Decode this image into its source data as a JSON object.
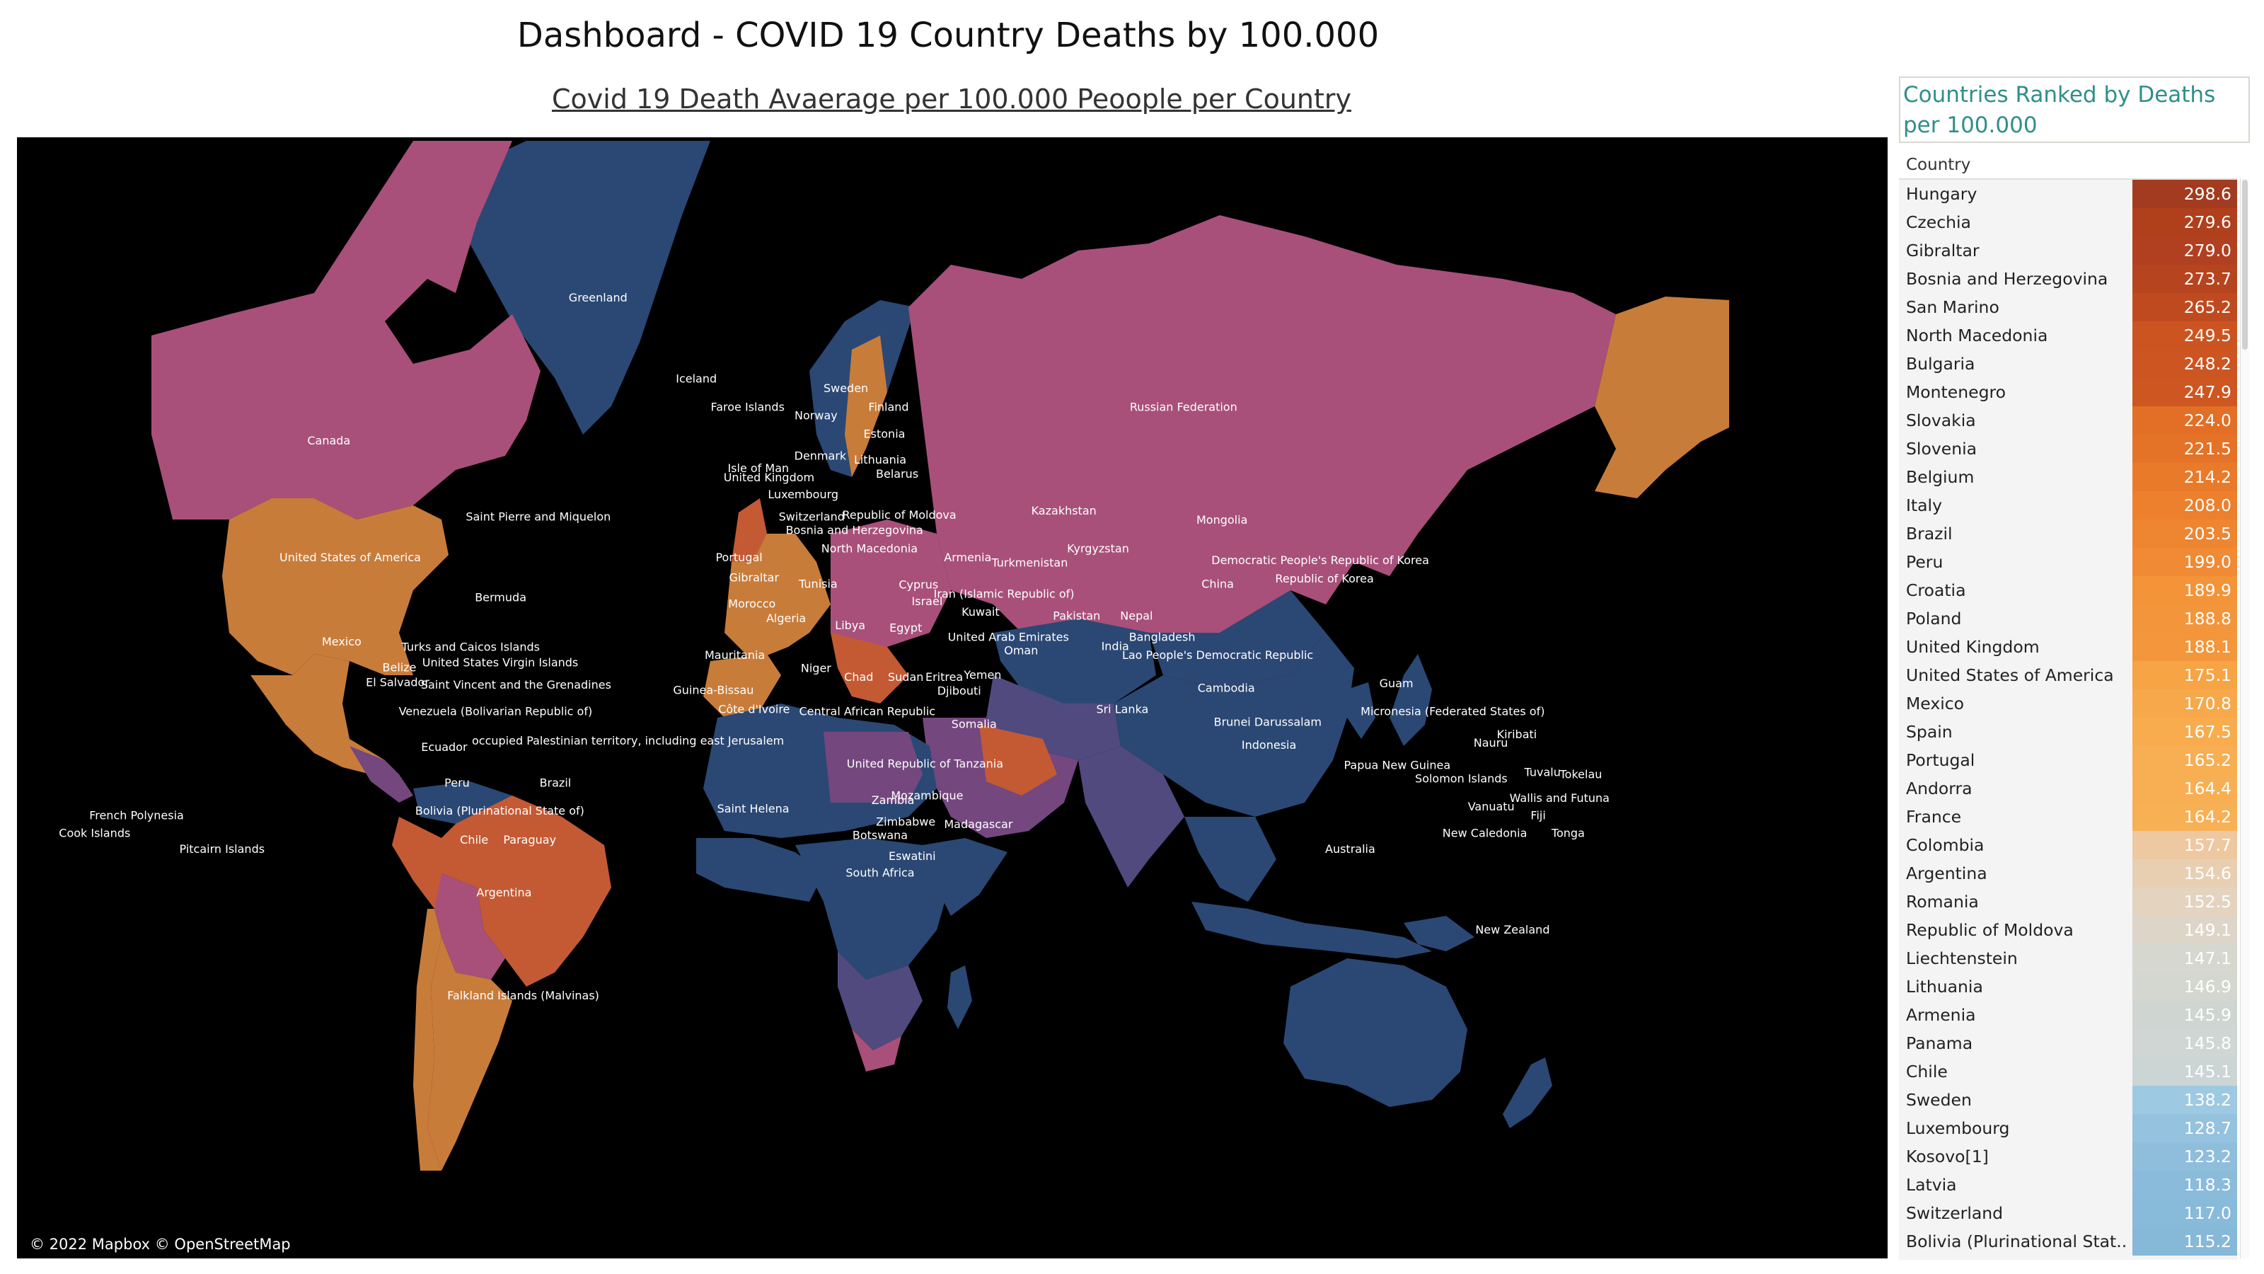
{
  "dashboard_title": "Dashboard - COVID 19 Country Deaths by 100.000",
  "map": {
    "title": "Covid 19 Death Avaerage per 100.000 Peoople per Country",
    "attribution": "© 2022 Mapbox © OpenStreetMap",
    "labels": [
      {
        "text": "Greenland",
        "lon": -42,
        "lat": 72
      },
      {
        "text": "Canada",
        "lon": -105,
        "lat": 58
      },
      {
        "text": "Iceland",
        "lon": -19,
        "lat": 65
      },
      {
        "text": "Faroe Islands",
        "lon": -7,
        "lat": 62
      },
      {
        "text": "Sweden",
        "lon": 16,
        "lat": 64
      },
      {
        "text": "Norway",
        "lon": 9,
        "lat": 61
      },
      {
        "text": "Finland",
        "lon": 26,
        "lat": 62
      },
      {
        "text": "Estonia",
        "lon": 25,
        "lat": 58.8
      },
      {
        "text": "Denmark",
        "lon": 10,
        "lat": 56
      },
      {
        "text": "Lithuania",
        "lon": 24,
        "lat": 55.5
      },
      {
        "text": "Isle of Man",
        "lon": -4.5,
        "lat": 54.3
      },
      {
        "text": "Belarus",
        "lon": 28,
        "lat": 53.5
      },
      {
        "text": "United Kingdom",
        "lon": -2,
        "lat": 53
      },
      {
        "text": "Luxembourg",
        "lon": 6,
        "lat": 50.5
      },
      {
        "text": "Republic of Moldova",
        "lon": 28.5,
        "lat": 47.3
      },
      {
        "text": "Switzerland",
        "lon": 8,
        "lat": 47
      },
      {
        "text": "Bosnia and Herzegovina",
        "lon": 18,
        "lat": 44.8
      },
      {
        "text": "North Macedonia",
        "lon": 21.5,
        "lat": 41.6
      },
      {
        "text": "Russian Federation",
        "lon": 95,
        "lat": 62
      },
      {
        "text": "Kazakhstan",
        "lon": 67,
        "lat": 48
      },
      {
        "text": "Mongolia",
        "lon": 104,
        "lat": 46.5
      },
      {
        "text": "Kyrgyzstan",
        "lon": 75,
        "lat": 41.6
      },
      {
        "text": "Portugal",
        "lon": -9,
        "lat": 40
      },
      {
        "text": "Armenia",
        "lon": 44.5,
        "lat": 40
      },
      {
        "text": "Turkmenistan",
        "lon": 59,
        "lat": 39
      },
      {
        "text": "Democratic People's Republic of Korea",
        "lon": 127,
        "lat": 39.5
      },
      {
        "text": "Gibraltar",
        "lon": -5.5,
        "lat": 36.2
      },
      {
        "text": "Tunisia",
        "lon": 9.5,
        "lat": 35
      },
      {
        "text": "Cyprus",
        "lon": 33,
        "lat": 34.8
      },
      {
        "text": "Republic of Korea",
        "lon": 128,
        "lat": 36
      },
      {
        "text": "Iran (Islamic Republic of)",
        "lon": 53,
        "lat": 33
      },
      {
        "text": "Morocco",
        "lon": -6,
        "lat": 31
      },
      {
        "text": "Israel",
        "lon": 35,
        "lat": 31.5
      },
      {
        "text": "Kuwait",
        "lon": 47.5,
        "lat": 29.3
      },
      {
        "text": "Algeria",
        "lon": 2,
        "lat": 28
      },
      {
        "text": "Libya",
        "lon": 17,
        "lat": 26.5
      },
      {
        "text": "Egypt",
        "lon": 30,
        "lat": 26
      },
      {
        "text": "Pakistan",
        "lon": 70,
        "lat": 28.5
      },
      {
        "text": "Nepal",
        "lon": 84,
        "lat": 28.5
      },
      {
        "text": "Bermuda",
        "lon": -64.8,
        "lat": 32.3
      },
      {
        "text": "United States of America",
        "lon": -100,
        "lat": 40
      },
      {
        "text": "Saint Pierre and Miquelon",
        "lon": -56,
        "lat": 47
      },
      {
        "text": "China",
        "lon": 103,
        "lat": 35
      },
      {
        "text": "Bangladesh",
        "lon": 90,
        "lat": 24
      },
      {
        "text": "United Arab Emirates",
        "lon": 54,
        "lat": 24
      },
      {
        "text": "India",
        "lon": 79,
        "lat": 22
      },
      {
        "text": "Oman",
        "lon": 57,
        "lat": 21
      },
      {
        "text": "Lao People's Democratic Republic",
        "lon": 103,
        "lat": 20
      },
      {
        "text": "Mexico",
        "lon": -102,
        "lat": 23
      },
      {
        "text": "Turks and Caicos Islands",
        "lon": -71.8,
        "lat": 21.8
      },
      {
        "text": "United States Virgin Islands",
        "lon": -64.9,
        "lat": 18.3
      },
      {
        "text": "Belize",
        "lon": -88.5,
        "lat": 17.2
      },
      {
        "text": "Mauritania",
        "lon": -10,
        "lat": 20
      },
      {
        "text": "Niger",
        "lon": 9,
        "lat": 17
      },
      {
        "text": "Chad",
        "lon": 19,
        "lat": 15
      },
      {
        "text": "Sudan",
        "lon": 30,
        "lat": 15
      },
      {
        "text": "Eritrea",
        "lon": 39,
        "lat": 15
      },
      {
        "text": "Yemen",
        "lon": 48,
        "lat": 15.5
      },
      {
        "text": "El Salvador",
        "lon": -88.9,
        "lat": 13.8
      },
      {
        "text": "Saint Vincent and the Grenadines",
        "lon": -61.2,
        "lat": 13.2
      },
      {
        "text": "Guinea-Bissau",
        "lon": -15,
        "lat": 12
      },
      {
        "text": "Djibouti",
        "lon": 42.5,
        "lat": 11.8
      },
      {
        "text": "Cambodia",
        "lon": 105,
        "lat": 12.5
      },
      {
        "text": "Guam",
        "lon": 144.8,
        "lat": 13.5
      },
      {
        "text": "Côte d'Ivoire",
        "lon": -5.5,
        "lat": 7.5
      },
      {
        "text": "Central African Republic",
        "lon": 21,
        "lat": 7
      },
      {
        "text": "Venezuela (Bolivarian Republic of)",
        "lon": -66,
        "lat": 7
      },
      {
        "text": "Sri Lanka",
        "lon": 80.7,
        "lat": 7.5
      },
      {
        "text": "Micronesia (Federated States of)",
        "lon": 158,
        "lat": 7
      },
      {
        "text": "Brunei Darussalam",
        "lon": 114.7,
        "lat": 4.5
      },
      {
        "text": "Somalia",
        "lon": 46,
        "lat": 4
      },
      {
        "text": "Kiribati",
        "lon": 173,
        "lat": 1.5
      },
      {
        "text": "occupied Palestinian territory, including east Jerusalem",
        "lon": -35,
        "lat": 0
      },
      {
        "text": "Ecuador",
        "lon": -78,
        "lat": -1.5
      },
      {
        "text": "Indonesia",
        "lon": 115,
        "lat": -1
      },
      {
        "text": "Nauru",
        "lon": 166.9,
        "lat": -0.5
      },
      {
        "text": "United Republic of Tanzania",
        "lon": 34.5,
        "lat": -5.5
      },
      {
        "text": "Papua New Guinea",
        "lon": 145,
        "lat": -5.8
      },
      {
        "text": "Tuvalu",
        "lon": 179,
        "lat": -7.5
      },
      {
        "text": "Tokelau",
        "lon": -172,
        "lat": -8
      },
      {
        "text": "Brazil",
        "lon": -52,
        "lat": -10
      },
      {
        "text": "Solomon Islands",
        "lon": 160,
        "lat": -9
      },
      {
        "text": "Peru",
        "lon": -75,
        "lat": -10
      },
      {
        "text": "Mozambique",
        "lon": 35,
        "lat": -13
      },
      {
        "text": "Wallis and Futuna",
        "lon": -177,
        "lat": -13.5
      },
      {
        "text": "Zambia",
        "lon": 27,
        "lat": -14
      },
      {
        "text": "Vanuatu",
        "lon": 167,
        "lat": -15.5
      },
      {
        "text": "Bolivia (Plurinational State of)",
        "lon": -65,
        "lat": -16.5
      },
      {
        "text": "Fiji",
        "lon": 178,
        "lat": -17.5
      },
      {
        "text": "Zimbabwe",
        "lon": 30,
        "lat": -19
      },
      {
        "text": "French Polynesia",
        "lon": -150,
        "lat": -17.5
      },
      {
        "text": "Madagascar",
        "lon": 47,
        "lat": -19.5
      },
      {
        "text": "New Caledonia",
        "lon": 165.5,
        "lat": -21.5
      },
      {
        "text": "Tonga",
        "lon": -175,
        "lat": -21.5
      },
      {
        "text": "Cook Islands",
        "lon": -159.8,
        "lat": -21.5
      },
      {
        "text": "Botswana",
        "lon": 24,
        "lat": -22
      },
      {
        "text": "Chile",
        "lon": -71,
        "lat": -23
      },
      {
        "text": "Paraguay",
        "lon": -58,
        "lat": -23
      },
      {
        "text": "Pitcairn Islands",
        "lon": -130,
        "lat": -25
      },
      {
        "text": "Australia",
        "lon": 134,
        "lat": -25
      },
      {
        "text": "Eswatini",
        "lon": 31.5,
        "lat": -26.5
      },
      {
        "text": "South Africa",
        "lon": 24,
        "lat": -30
      },
      {
        "text": "Argentina",
        "lon": -64,
        "lat": -34
      },
      {
        "text": "New Zealand",
        "lon": 172,
        "lat": -41
      },
      {
        "text": "Saint Helena",
        "lon": -5.7,
        "lat": -16
      },
      {
        "text": "Falkland Islands (Malvinas)",
        "lon": -59.5,
        "lat": -51.8
      }
    ]
  },
  "ranking": {
    "title": "Countries Ranked by Deaths per 100.000",
    "column_header": "Country",
    "rows": [
      {
        "country": "Hungary",
        "value": "298.6",
        "color": "#a23b1f"
      },
      {
        "country": "Czechia",
        "value": "279.6",
        "color": "#b03f1c"
      },
      {
        "country": "Gibraltar",
        "value": "279.0",
        "color": "#b14020"
      },
      {
        "country": "Bosnia and Herzegovina",
        "value": "273.7",
        "color": "#b6441f"
      },
      {
        "country": "San Marino",
        "value": "265.2",
        "color": "#bf4a1f"
      },
      {
        "country": "North Macedonia",
        "value": "249.5",
        "color": "#cc5420"
      },
      {
        "country": "Bulgaria",
        "value": "248.2",
        "color": "#cd5521"
      },
      {
        "country": "Montenegro",
        "value": "247.9",
        "color": "#cd5621"
      },
      {
        "country": "Slovakia",
        "value": "224.0",
        "color": "#e26f25"
      },
      {
        "country": "Slovenia",
        "value": "221.5",
        "color": "#e47227"
      },
      {
        "country": "Belgium",
        "value": "214.2",
        "color": "#e97a29"
      },
      {
        "country": "Italy",
        "value": "208.0",
        "color": "#ec802d"
      },
      {
        "country": "Brazil",
        "value": "203.5",
        "color": "#ee8531"
      },
      {
        "country": "Peru",
        "value": "199.0",
        "color": "#f08a34"
      },
      {
        "country": "Croatia",
        "value": "189.9",
        "color": "#f39439"
      },
      {
        "country": "Poland",
        "value": "188.8",
        "color": "#f3953a"
      },
      {
        "country": "United Kingdom",
        "value": "188.1",
        "color": "#f4963b"
      },
      {
        "country": "United States of America",
        "value": "175.1",
        "color": "#f6a444"
      },
      {
        "country": "Mexico",
        "value": "170.8",
        "color": "#f7a84a"
      },
      {
        "country": "Spain",
        "value": "167.5",
        "color": "#f8ac4e"
      },
      {
        "country": "Portugal",
        "value": "165.2",
        "color": "#f8ae52"
      },
      {
        "country": "Andorra",
        "value": "164.4",
        "color": "#f8af53"
      },
      {
        "country": "France",
        "value": "164.2",
        "color": "#f8b055"
      },
      {
        "country": "Colombia",
        "value": "157.7",
        "color": "#eec8a0"
      },
      {
        "country": "Argentina",
        "value": "154.6",
        "color": "#e9cfb2"
      },
      {
        "country": "Romania",
        "value": "152.5",
        "color": "#e4d3be"
      },
      {
        "country": "Republic of Moldova",
        "value": "149.1",
        "color": "#ddd6c8"
      },
      {
        "country": "Liechtenstein",
        "value": "147.1",
        "color": "#d6d7cf"
      },
      {
        "country": "Lithuania",
        "value": "146.9",
        "color": "#d4d7d0"
      },
      {
        "country": "Armenia",
        "value": "145.9",
        "color": "#cfd6d2"
      },
      {
        "country": "Panama",
        "value": "145.8",
        "color": "#cfd6d3"
      },
      {
        "country": "Chile",
        "value": "145.1",
        "color": "#cbd5d4"
      },
      {
        "country": "Sweden",
        "value": "138.2",
        "color": "#9ec9e2"
      },
      {
        "country": "Luxembourg",
        "value": "128.7",
        "color": "#95c2de"
      },
      {
        "country": "Kosovo[1]",
        "value": "123.2",
        "color": "#8fbedc"
      },
      {
        "country": "Latvia",
        "value": "118.3",
        "color": "#8abbda"
      },
      {
        "country": "Switzerland",
        "value": "117.0",
        "color": "#88bad9"
      },
      {
        "country": "Bolivia (Plurinational Stat..",
        "value": "115.2",
        "color": "#86b8d8"
      }
    ]
  },
  "map_colors": {
    "background": "#000000",
    "high": "#c45a34",
    "mid_high": "#c87c3a",
    "mid": "#a8507a",
    "mid_low": "#74477f",
    "low": "#514a7e",
    "lowest": "#2b4874"
  }
}
